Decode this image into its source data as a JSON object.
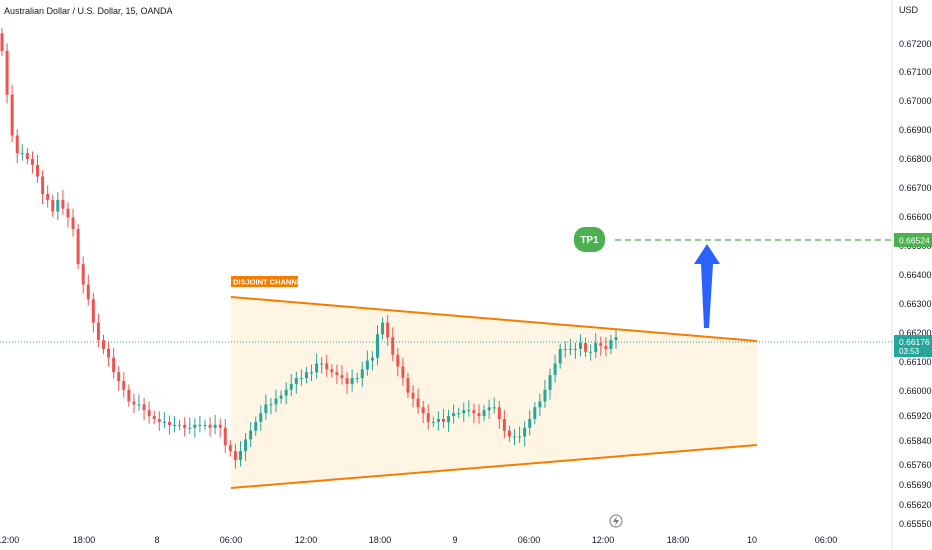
{
  "chart_data": {
    "type": "candlestick",
    "title": "Australian Dollar / U.S. Dollar, 15, OANDA",
    "currency": "USD",
    "x_ticks": [
      "12:00",
      "18:00",
      "8",
      "06:00",
      "12:00",
      "18:00",
      "9",
      "06:00",
      "12:00",
      "18:00",
      "10",
      "06:00"
    ],
    "y_ticks": [
      "0.67200",
      "0.67100",
      "0.67000",
      "0.66900",
      "0.66800",
      "0.66700",
      "0.66600",
      "0.66500",
      "0.66400",
      "0.66300",
      "0.66200",
      "0.66100",
      "0.66000",
      "0.65920",
      "0.65840",
      "0.65760",
      "0.65690",
      "0.65620",
      "0.65550"
    ],
    "ylim": [
      0.6551,
      0.6729
    ],
    "colors": {
      "up": "#26a69a",
      "down": "#ef5350",
      "channel_line": "#f57c00",
      "channel_fill": "#fff3e0",
      "target_line": "#4caf50",
      "arrow": "#2962ff"
    },
    "series_close": [
      0.6715,
      0.67,
      0.6686,
      0.668,
      0.668,
      0.6678,
      0.6676,
      0.6672,
      0.6666,
      0.6664,
      0.666,
      0.6664,
      0.6661,
      0.6658,
      0.6654,
      0.6642,
      0.6635,
      0.663,
      0.6622,
      0.6616,
      0.6613,
      0.661,
      0.6605,
      0.6602,
      0.6599,
      0.6595,
      0.6594,
      0.6594,
      0.6592,
      0.659,
      0.6589,
      0.6588,
      0.6588,
      0.6587,
      0.6587,
      0.6587,
      0.6586,
      0.6586,
      0.6587,
      0.6587,
      0.6587,
      0.6586,
      0.6587,
      0.6586,
      0.658,
      0.6578,
      0.6575,
      0.6578,
      0.6582,
      0.6585,
      0.6588,
      0.6591,
      0.6594,
      0.6594,
      0.6596,
      0.6597,
      0.6599,
      0.6601,
      0.6603,
      0.6603,
      0.6605,
      0.6605,
      0.6608,
      0.6608,
      0.6606,
      0.6605,
      0.6604,
      0.6603,
      0.6601,
      0.6603,
      0.6603,
      0.6606,
      0.6609,
      0.661,
      0.6618,
      0.6622,
      0.6617,
      0.6611,
      0.6607,
      0.6603,
      0.6598,
      0.6596,
      0.6593,
      0.6591,
      0.6588,
      0.6588,
      0.6589,
      0.6588,
      0.659,
      0.6591,
      0.6591,
      0.6592,
      0.6592,
      0.6591,
      0.659,
      0.6592,
      0.6593,
      0.6593,
      0.6589,
      0.6585,
      0.6583,
      0.6583,
      0.6583,
      0.6586,
      0.6589,
      0.6593,
      0.6595,
      0.6599,
      0.6604,
      0.6608,
      0.6613,
      0.6613,
      0.6613,
      0.6613,
      0.6615,
      0.6612,
      0.6612,
      0.6615,
      0.6614,
      0.6613,
      0.6616,
      0.6617
    ]
  },
  "overlays": {
    "channel_label": "DISJOINT CHANNEL",
    "target_label": "TP1",
    "target_price": "0.66524",
    "current_price": "0.66176",
    "countdown": "03:53"
  }
}
